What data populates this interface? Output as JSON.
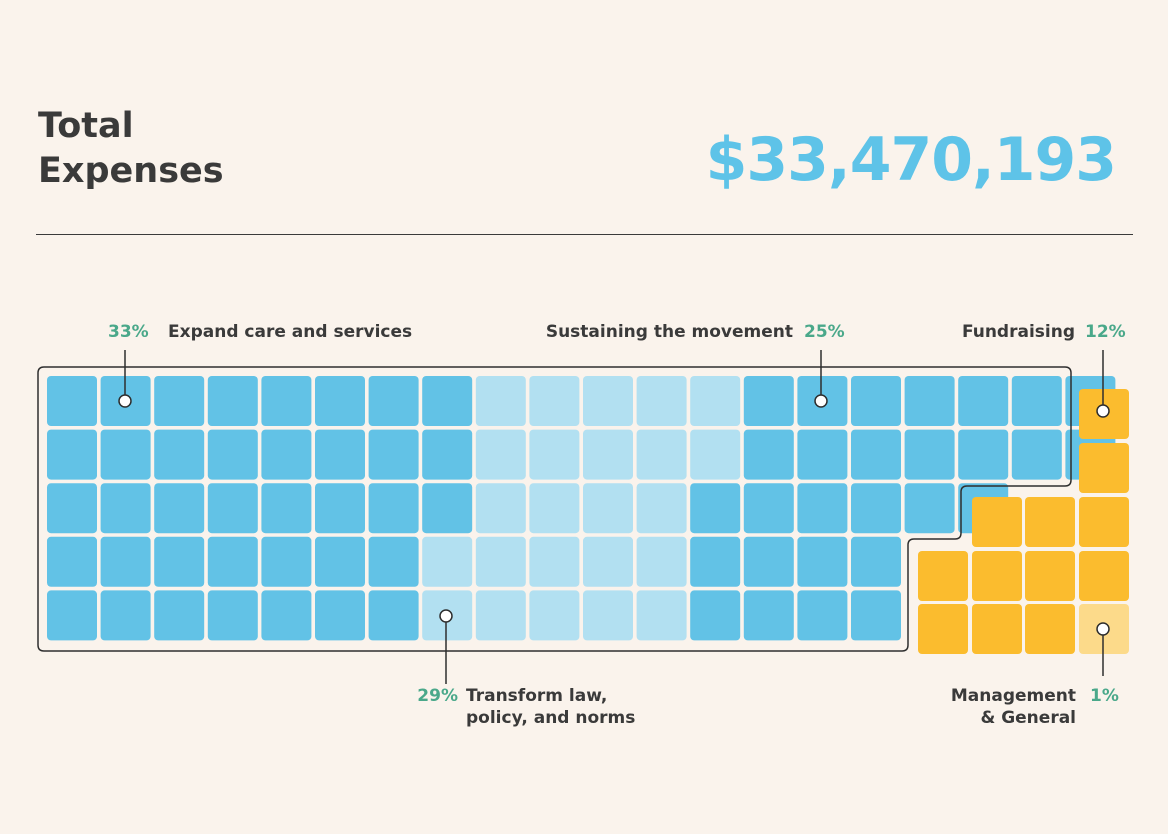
{
  "header": {
    "title_line1": "Total",
    "title_line2": "Expenses",
    "total": "$33,470,193"
  },
  "chart_data": {
    "type": "waffle",
    "title": "Total Expenses",
    "total": "$33,470,193",
    "series": [
      {
        "name": "Expand care and services",
        "value": 33,
        "label": "33%",
        "color": "#62c2e6"
      },
      {
        "name": "Transform law, policy, and norms",
        "value": 29,
        "label": "29%",
        "color": "#b2e0f1"
      },
      {
        "name": "Sustaining the movement",
        "value": 25,
        "label": "25%",
        "color": "#62c2e6"
      },
      {
        "name": "Fundraising",
        "value": 12,
        "label": "12%",
        "color": "#fbbc2e"
      },
      {
        "name": "Management & General",
        "value": 1,
        "label": "1%",
        "color": "#fcda8a"
      }
    ],
    "annotations": {
      "expand": {
        "line1": "Expand care and services"
      },
      "sustain": {
        "line1": "Sustaining the movement"
      },
      "fundraising": {
        "line1": "Fundraising"
      },
      "transform": {
        "line1": "Transform law,",
        "line2": "policy, and norms"
      },
      "management": {
        "line1": "Management",
        "line2": "& General"
      }
    }
  }
}
